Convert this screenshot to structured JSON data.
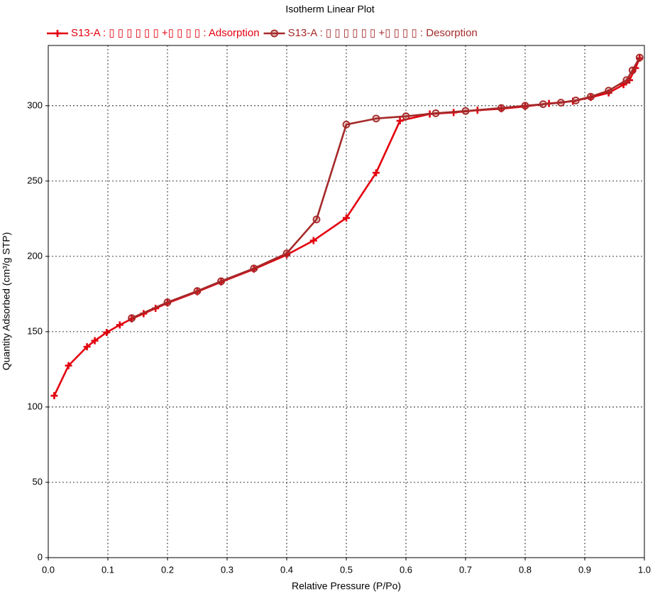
{
  "chart_data": {
    "type": "line",
    "title": "Isotherm Linear Plot",
    "x_label": "Relative Pressure (P/Po)",
    "y_label": "Quantity Adsorbed (cm³/g STP)",
    "xlim": [
      0,
      1
    ],
    "ylim": [
      0,
      340
    ],
    "xticks": [
      {
        "value": 0,
        "label": "0.0"
      },
      0.1,
      0.2,
      0.3,
      0.4,
      0.5,
      0.6,
      0.7,
      0.8,
      0.9,
      {
        "value": 1,
        "label": "1.0"
      }
    ],
    "yticks": [
      0,
      50,
      100,
      150,
      200,
      250,
      300
    ],
    "grid": true,
    "legend": "top",
    "series": [
      {
        "name": "S13-A : ▯ ▯ ▯ ▯ ▯ ▯ +▯ ▯ ▯ ▯ : Adsorption",
        "color": "#e3000f",
        "marker": "plus",
        "x": [
          0.01,
          0.034,
          0.065,
          0.078,
          0.098,
          0.12,
          0.14,
          0.16,
          0.18,
          0.2,
          0.25,
          0.29,
          0.345,
          0.4,
          0.445,
          0.5,
          0.55,
          0.59,
          0.64,
          0.68,
          0.72,
          0.76,
          0.8,
          0.84,
          0.88,
          0.91,
          0.94,
          0.965,
          0.975,
          0.985,
          0.992
        ],
        "values": [
          107.5,
          127.5,
          140,
          144,
          149.5,
          154.5,
          158.5,
          162,
          165.5,
          169,
          176.5,
          183,
          191.5,
          201,
          210.5,
          225.5,
          255.5,
          290,
          294.5,
          295.5,
          297,
          298,
          299.5,
          301.5,
          303,
          305.5,
          308.5,
          314,
          317,
          325,
          331.5
        ]
      },
      {
        "name": "S13-A : ▯ ▯ ▯ ▯ ▯ ▯ +▯ ▯ ▯ ▯ : Desorption",
        "color": "#a52a2a",
        "marker": "circle",
        "x": [
          0.992,
          0.98,
          0.97,
          0.94,
          0.91,
          0.885,
          0.86,
          0.83,
          0.8,
          0.76,
          0.7,
          0.65,
          0.6,
          0.55,
          0.5,
          0.45,
          0.4,
          0.345,
          0.29,
          0.25,
          0.2,
          0.14
        ],
        "values": [
          332,
          323.5,
          317,
          310,
          306,
          303.5,
          302,
          301,
          300,
          298.5,
          296.5,
          295,
          293,
          291.5,
          287.5,
          224.5,
          202,
          192,
          183.5,
          177,
          169.5,
          159
        ]
      }
    ]
  }
}
